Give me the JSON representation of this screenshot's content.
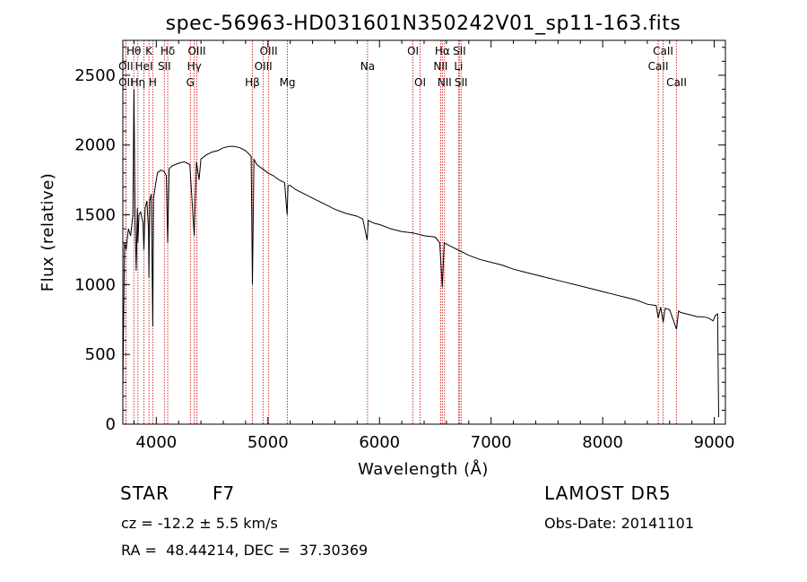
{
  "chart_data": {
    "type": "line",
    "title": "spec-56963-HD031601N350242V01_sp11-163.fits",
    "xlabel": "Wavelength (Å)",
    "ylabel": "Flux (relative)",
    "xlim": [
      3700,
      9100
    ],
    "ylim": [
      0,
      2750
    ],
    "xticks": [
      4000,
      5000,
      6000,
      7000,
      8000,
      9000
    ],
    "yticks": [
      0,
      500,
      1000,
      1500,
      2000,
      2500
    ],
    "grid": false,
    "line_color": "#000000",
    "marker_color": "#cc0000",
    "series": [
      {
        "x": [
          3700,
          3715,
          3730,
          3750,
          3770,
          3790,
          3800,
          3810,
          3820,
          3830,
          3835,
          3845,
          3860,
          3870,
          3880,
          3889,
          3900,
          3915,
          3930,
          3934,
          3940,
          3955,
          3968,
          3975,
          3990,
          4010,
          4040,
          4070,
          4090,
          4102,
          4115,
          4140,
          4170,
          4200,
          4250,
          4300,
          4320,
          4340,
          4360,
          4383,
          4400,
          4450,
          4500,
          4550,
          4600,
          4650,
          4700,
          4750,
          4800,
          4850,
          4861,
          4875,
          4900,
          4950,
          5000,
          5050,
          5100,
          5150,
          5172,
          5180,
          5200,
          5250,
          5300,
          5400,
          5500,
          5600,
          5700,
          5800,
          5850,
          5889,
          5900,
          5950,
          6000,
          6100,
          6200,
          6300,
          6400,
          6500,
          6540,
          6563,
          6580,
          6600,
          6700,
          6800,
          6900,
          7000,
          7100,
          7200,
          7300,
          7400,
          7500,
          7600,
          7700,
          7800,
          7900,
          8000,
          8100,
          8200,
          8300,
          8400,
          8480,
          8498,
          8520,
          8542,
          8560,
          8600,
          8662,
          8680,
          8700,
          8750,
          8800,
          8850,
          8900,
          8950,
          8990,
          9010,
          9030,
          9040
        ],
        "y": [
          250,
          1300,
          1250,
          1400,
          1350,
          1500,
          2400,
          1450,
          1100,
          1550,
          1300,
          1500,
          1520,
          1480,
          1450,
          1250,
          1550,
          1600,
          1400,
          1050,
          1600,
          1650,
          700,
          1620,
          1700,
          1800,
          1820,
          1810,
          1780,
          1300,
          1830,
          1850,
          1860,
          1870,
          1880,
          1860,
          1600,
          1350,
          1880,
          1750,
          1900,
          1930,
          1950,
          1960,
          1980,
          1990,
          1990,
          1980,
          1960,
          1920,
          1000,
          1900,
          1860,
          1830,
          1800,
          1780,
          1750,
          1730,
          1500,
          1710,
          1710,
          1680,
          1660,
          1620,
          1580,
          1540,
          1510,
          1490,
          1470,
          1320,
          1460,
          1440,
          1430,
          1400,
          1380,
          1370,
          1350,
          1340,
          1300,
          980,
          1300,
          1290,
          1250,
          1210,
          1180,
          1160,
          1140,
          1110,
          1090,
          1070,
          1050,
          1030,
          1010,
          990,
          970,
          950,
          930,
          910,
          890,
          860,
          850,
          760,
          840,
          730,
          830,
          820,
          680,
          810,
          800,
          790,
          780,
          770,
          770,
          760,
          740,
          780,
          790,
          50
        ]
      }
    ],
    "line_markers": [
      {
        "label": "Hθ",
        "x": 3798,
        "row": 1
      },
      {
        "label": "K",
        "x": 3934,
        "row": 1
      },
      {
        "label": "Hδ",
        "x": 4102,
        "row": 1
      },
      {
        "label": "OIII",
        "x": 4363,
        "row": 1
      },
      {
        "label": "OIII",
        "x": 5007,
        "row": 1
      },
      {
        "label": "OI",
        "x": 6300,
        "row": 1
      },
      {
        "label": "Hα",
        "x": 6563,
        "row": 1
      },
      {
        "label": "SII",
        "x": 6716,
        "row": 1
      },
      {
        "label": "CaII",
        "x": 8542,
        "row": 1
      },
      {
        "label": "OII",
        "x": 3727,
        "row": 2
      },
      {
        "label": "HeI",
        "x": 3889,
        "row": 2
      },
      {
        "label": "SII",
        "x": 4072,
        "row": 2
      },
      {
        "label": "Hγ",
        "x": 4340,
        "row": 2
      },
      {
        "label": "OIII",
        "x": 4959,
        "row": 2
      },
      {
        "label": "Na",
        "x": 5893,
        "row": 2
      },
      {
        "label": "NII",
        "x": 6548,
        "row": 2
      },
      {
        "label": "Li",
        "x": 6708,
        "row": 2
      },
      {
        "label": "CaII",
        "x": 8498,
        "row": 2
      },
      {
        "label": "OII",
        "x": 3727,
        "row": 3
      },
      {
        "label": "Hη",
        "x": 3835,
        "row": 3
      },
      {
        "label": "H",
        "x": 3968,
        "row": 3
      },
      {
        "label": "G",
        "x": 4305,
        "row": 3
      },
      {
        "label": "Hβ",
        "x": 4861,
        "row": 3
      },
      {
        "label": "Mg",
        "x": 5175,
        "row": 3
      },
      {
        "label": "OI",
        "x": 6364,
        "row": 3
      },
      {
        "label": "NII",
        "x": 6583,
        "row": 3
      },
      {
        "label": "SII",
        "x": 6731,
        "row": 3
      },
      {
        "label": "CaII",
        "x": 8662,
        "row": 3
      }
    ]
  },
  "footer": {
    "object_class": "STAR",
    "spectral_type": "F7",
    "survey": "LAMOST DR5",
    "cz": "cz = -12.2 ± 5.5 km/s",
    "obs_date": "Obs-Date: 20141101",
    "coords": "RA =  48.44214, DEC =  37.30369"
  }
}
